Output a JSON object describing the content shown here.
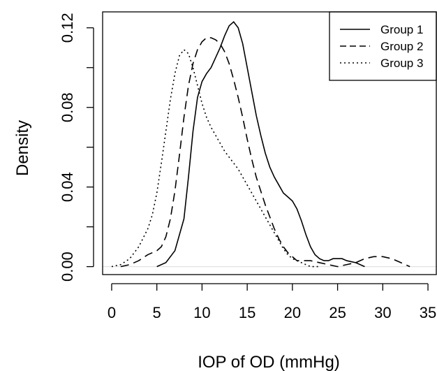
{
  "chart_data": {
    "type": "line",
    "title": "",
    "xlabel": "IOP of OD (mmHg)",
    "ylabel": "Density",
    "xlim": [
      -1,
      36
    ],
    "ylim": [
      -0.004,
      0.128
    ],
    "x_ticks": [
      "0",
      "5",
      "10",
      "15",
      "20",
      "25",
      "30",
      "35"
    ],
    "x_tick_values": [
      0,
      5,
      10,
      15,
      20,
      25,
      30,
      35
    ],
    "y_ticks": [
      "0.00",
      "0.04",
      "0.08",
      "0.12"
    ],
    "y_tick_values": [
      0.0,
      0.04,
      0.08,
      0.12
    ],
    "grid": false,
    "legend_position": "top-right",
    "series": [
      {
        "name": "Group 1",
        "line_style": "solid",
        "x": [
          5,
          6,
          7,
          8,
          8.5,
          9,
          9.5,
          10,
          10.5,
          11,
          11.5,
          12,
          12.5,
          13,
          13.5,
          14,
          14.5,
          15,
          15.5,
          16,
          16.5,
          17,
          17.5,
          18,
          18.5,
          19,
          19.5,
          20,
          20.5,
          21,
          21.5,
          22,
          22.5,
          23,
          23.5,
          24,
          24.5,
          25,
          25.5,
          26,
          27,
          28
        ],
        "y": [
          0.0,
          0.002,
          0.008,
          0.024,
          0.045,
          0.068,
          0.085,
          0.093,
          0.097,
          0.1,
          0.105,
          0.11,
          0.116,
          0.121,
          0.123,
          0.12,
          0.112,
          0.1,
          0.088,
          0.076,
          0.066,
          0.057,
          0.05,
          0.045,
          0.041,
          0.037,
          0.035,
          0.033,
          0.029,
          0.023,
          0.016,
          0.01,
          0.006,
          0.004,
          0.003,
          0.003,
          0.004,
          0.004,
          0.004,
          0.003,
          0.002,
          0.0
        ]
      },
      {
        "name": "Group 2",
        "line_style": "dashed",
        "x": [
          1,
          2,
          3,
          4,
          4.5,
          5,
          5.5,
          6,
          6.5,
          7,
          7.5,
          8,
          8.5,
          9,
          9.5,
          10,
          10.5,
          11,
          11.5,
          12,
          12.5,
          13,
          13.5,
          14,
          14.5,
          15,
          15.5,
          16,
          16.5,
          17,
          17.5,
          18,
          18.5,
          19,
          19.5,
          20,
          20.5,
          21,
          22,
          23,
          24,
          25,
          26,
          27,
          28,
          29,
          30,
          31,
          32,
          33
        ],
        "y": [
          0.0,
          0.001,
          0.003,
          0.006,
          0.007,
          0.008,
          0.01,
          0.015,
          0.024,
          0.038,
          0.056,
          0.075,
          0.091,
          0.102,
          0.109,
          0.113,
          0.115,
          0.115,
          0.114,
          0.112,
          0.108,
          0.102,
          0.094,
          0.085,
          0.075,
          0.064,
          0.054,
          0.045,
          0.038,
          0.031,
          0.025,
          0.019,
          0.014,
          0.01,
          0.007,
          0.005,
          0.003,
          0.003,
          0.003,
          0.002,
          0.001,
          0.0,
          0.001,
          0.002,
          0.004,
          0.005,
          0.005,
          0.004,
          0.002,
          0.0
        ]
      },
      {
        "name": "Group 3",
        "line_style": "dotted",
        "x": [
          0,
          1,
          2,
          3,
          4,
          4.5,
          5,
          5.5,
          6,
          6.5,
          7,
          7.5,
          8,
          8.5,
          9,
          9.5,
          10,
          10.5,
          11,
          11.5,
          12,
          12.5,
          13,
          13.5,
          14,
          14.5,
          15,
          15.5,
          16,
          16.5,
          17,
          17.5,
          18,
          18.5,
          19,
          19.5,
          20,
          20.5,
          21,
          21.5,
          22,
          23
        ],
        "y": [
          0.0,
          0.001,
          0.004,
          0.01,
          0.019,
          0.026,
          0.037,
          0.052,
          0.068,
          0.084,
          0.097,
          0.106,
          0.109,
          0.107,
          0.1,
          0.091,
          0.082,
          0.075,
          0.07,
          0.066,
          0.062,
          0.058,
          0.055,
          0.052,
          0.049,
          0.045,
          0.041,
          0.037,
          0.033,
          0.029,
          0.025,
          0.021,
          0.017,
          0.013,
          0.009,
          0.006,
          0.004,
          0.003,
          0.002,
          0.001,
          0.0,
          0.0
        ]
      }
    ]
  }
}
